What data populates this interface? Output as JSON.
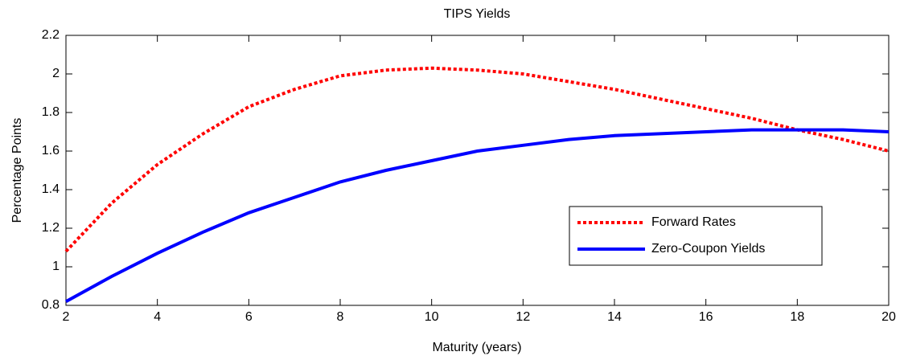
{
  "chart_data": {
    "type": "line",
    "title": "TIPS Yields",
    "x_label": "Maturity (years)",
    "y_label": "Percentage Points",
    "x": [
      2,
      3,
      4,
      5,
      6,
      7,
      8,
      9,
      10,
      11,
      12,
      13,
      14,
      15,
      16,
      17,
      18,
      19,
      20
    ],
    "series": [
      {
        "name": "Forward Rates",
        "color": "#ff0000",
        "style": "dotted",
        "values": [
          1.08,
          1.33,
          1.53,
          1.69,
          1.83,
          1.92,
          1.99,
          2.02,
          2.03,
          2.02,
          2.0,
          1.96,
          1.92,
          1.87,
          1.82,
          1.77,
          1.71,
          1.66,
          1.6
        ]
      },
      {
        "name": "Zero-Coupon Yields",
        "color": "#0000ff",
        "style": "solid",
        "values": [
          0.82,
          0.95,
          1.07,
          1.18,
          1.28,
          1.36,
          1.44,
          1.5,
          1.55,
          1.6,
          1.63,
          1.66,
          1.68,
          1.69,
          1.7,
          1.71,
          1.71,
          1.71,
          1.7
        ]
      }
    ],
    "xlim": [
      2,
      20
    ],
    "xticks": [
      2,
      4,
      6,
      8,
      10,
      12,
      14,
      16,
      18,
      20
    ],
    "ylim": [
      0.8,
      2.2
    ],
    "yticks": [
      0.8,
      1,
      1.2,
      1.4,
      1.6,
      1.8,
      2,
      2.2
    ],
    "grid": false,
    "legend": "lower right"
  }
}
